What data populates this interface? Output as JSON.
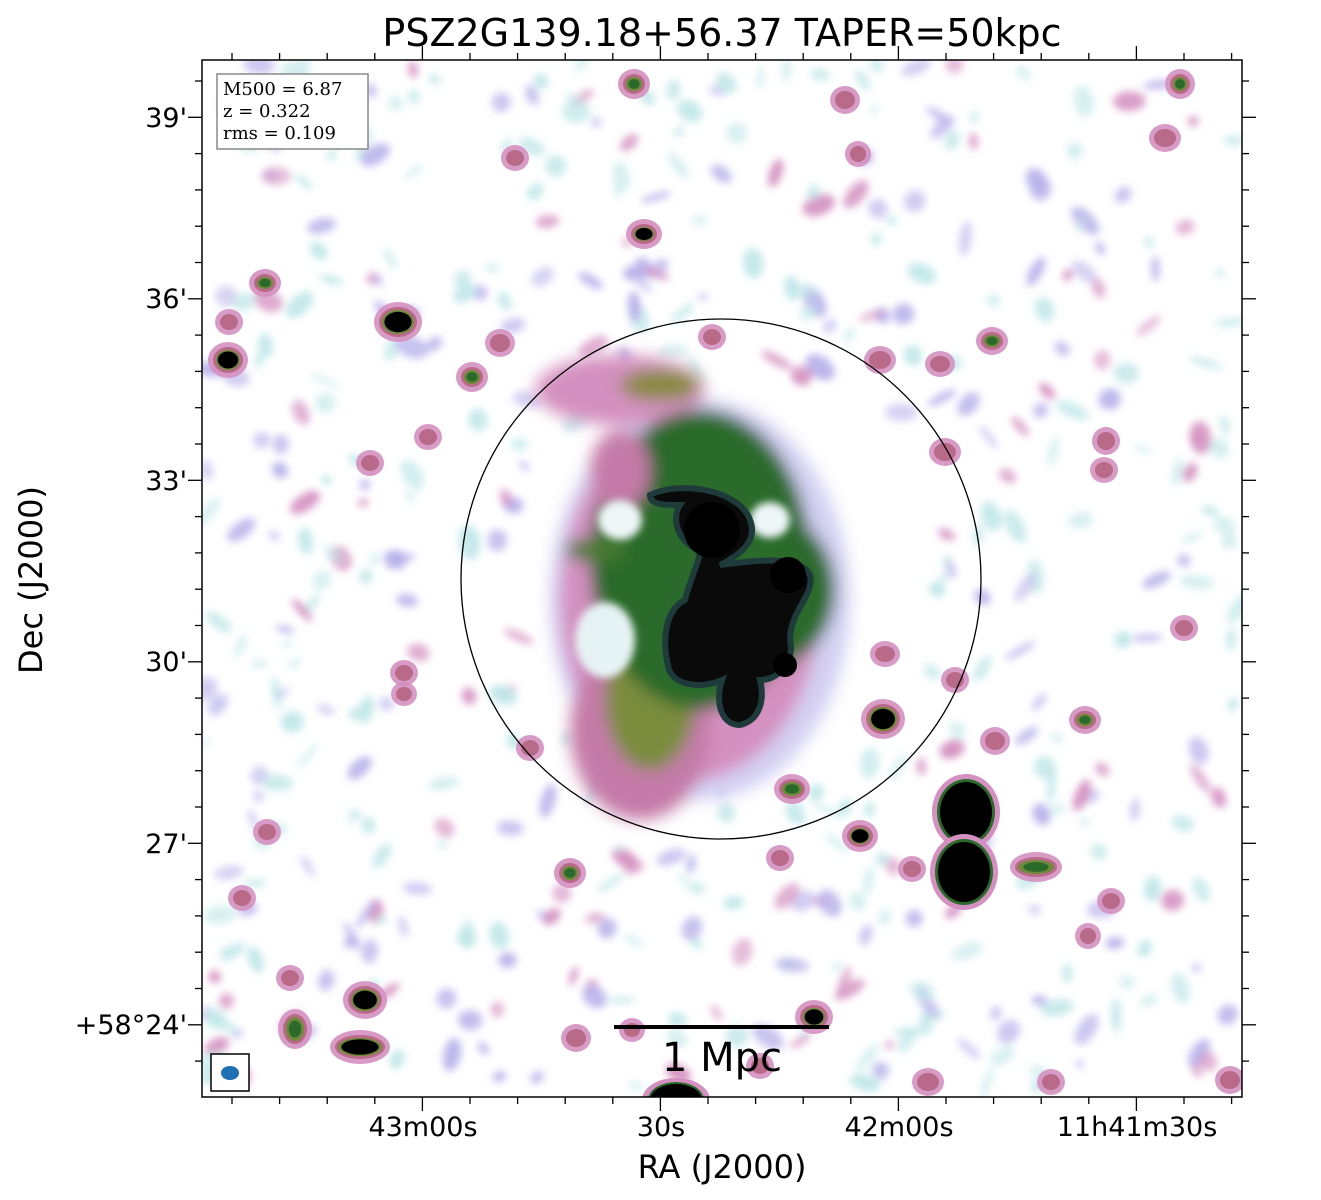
{
  "title": "PSZ2G139.18+56.37 TAPER=50kpc",
  "xlabel": "RA (J2000)",
  "ylabel": "Dec (J2000)",
  "x_ticks": [
    "43m00s",
    "30s",
    "42m00s",
    "11h41m30s"
  ],
  "y_ticks": [
    "39'",
    "36'",
    "33'",
    "30'",
    "27'",
    "+58°24'"
  ],
  "info": {
    "m500": "M500 = 6.87",
    "z": "z = 0.322",
    "rms": "rms = 0.109"
  },
  "scale_bar_label": "1 Mpc",
  "colors": {
    "faint": "#bfe6e8",
    "lavender": "#b8b0ea",
    "pink": "#d490c0",
    "rose": "#b86a88",
    "olive": "#6e8a3a",
    "green": "#2c6a2c",
    "core": "#000000",
    "beam": "#1f6fb5"
  }
}
